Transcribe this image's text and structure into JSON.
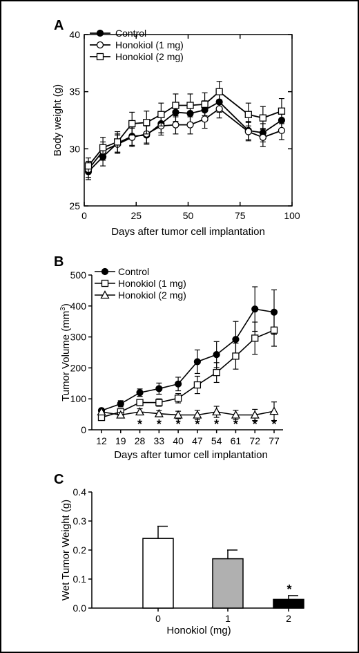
{
  "chart_data": [
    {
      "type": "line",
      "panel": "A",
      "xlabel": "Days after tumor cell implantation",
      "ylabel": "Body weight (g)",
      "xlim": [
        0,
        100
      ],
      "ylim": [
        25,
        40
      ],
      "xticks": [
        0,
        25,
        50,
        75,
        100
      ],
      "yticks": [
        25,
        30,
        35,
        40
      ],
      "legend_position": "top-left",
      "grid": false,
      "series": [
        {
          "name": "Control",
          "marker": "filled-circle",
          "x": [
            2,
            9,
            16,
            23,
            30,
            37,
            44,
            51,
            58,
            65,
            79,
            86,
            95
          ],
          "y": [
            28.0,
            29.3,
            30.5,
            31.1,
            31.2,
            32.2,
            33.2,
            33.1,
            33.4,
            34.1,
            31.6,
            31.4,
            32.5
          ],
          "err": [
            0.7,
            0.8,
            0.8,
            0.8,
            0.8,
            0.8,
            0.8,
            0.8,
            0.8,
            0.9,
            0.8,
            0.8,
            0.8
          ]
        },
        {
          "name": "Honokiol (1 mg)",
          "marker": "open-circle",
          "x": [
            2,
            9,
            16,
            23,
            30,
            37,
            44,
            51,
            58,
            65,
            79,
            86,
            95
          ],
          "y": [
            28.2,
            29.8,
            30.4,
            31.0,
            31.3,
            32.0,
            32.1,
            32.1,
            32.6,
            33.5,
            31.5,
            31.0,
            31.6
          ],
          "err": [
            0.7,
            0.8,
            0.8,
            0.8,
            0.8,
            0.8,
            0.8,
            0.8,
            0.8,
            0.8,
            0.8,
            0.8,
            0.8
          ]
        },
        {
          "name": "Honokiol (2 mg)",
          "marker": "open-square",
          "x": [
            2,
            9,
            16,
            23,
            30,
            37,
            44,
            51,
            58,
            65,
            79,
            86,
            95
          ],
          "y": [
            28.5,
            30.1,
            30.6,
            32.2,
            32.3,
            33.0,
            33.8,
            33.8,
            33.9,
            35.0,
            33.0,
            32.7,
            33.3
          ],
          "err": [
            0.7,
            0.9,
            0.9,
            1.0,
            1.0,
            1.0,
            1.0,
            1.0,
            1.0,
            0.9,
            1.0,
            1.0,
            1.1
          ]
        }
      ]
    },
    {
      "type": "line",
      "panel": "B",
      "xlabel": "Days after tumor cell implantation",
      "ylabel": "Tumor Volume (mm",
      "ylabel_sup": "3",
      "ylabel_end": ")",
      "categories": [
        "12",
        "19",
        "28",
        "33",
        "40",
        "47",
        "54",
        "61",
        "72",
        "77"
      ],
      "ylim": [
        0,
        500
      ],
      "yticks": [
        0,
        100,
        200,
        300,
        400,
        500
      ],
      "legend_position": "top-left",
      "grid": false,
      "significance_marker": "*",
      "significant_indices": [
        2,
        3,
        4,
        5,
        6,
        7,
        8,
        9
      ],
      "series": [
        {
          "name": "Control",
          "marker": "filled-circle",
          "values": [
            62,
            84,
            120,
            133,
            148,
            220,
            243,
            292,
            390,
            380
          ],
          "err": [
            8,
            10,
            12,
            18,
            22,
            38,
            42,
            58,
            72,
            72
          ]
        },
        {
          "name": "Honokiol (1 mg)",
          "marker": "open-square",
          "values": [
            40,
            58,
            88,
            88,
            102,
            145,
            185,
            238,
            296,
            322
          ],
          "err": [
            5,
            8,
            10,
            12,
            15,
            28,
            32,
            42,
            52,
            52
          ]
        },
        {
          "name": "Honokiol (2 mg)",
          "marker": "open-triangle",
          "values": [
            58,
            48,
            58,
            52,
            48,
            48,
            58,
            48,
            48,
            60
          ],
          "err": [
            8,
            8,
            10,
            10,
            12,
            15,
            18,
            15,
            18,
            30
          ]
        }
      ]
    },
    {
      "type": "bar",
      "panel": "C",
      "xlabel": "Honokiol (mg)",
      "ylabel": "Wet Tumor Weight (g)",
      "categories": [
        "0",
        "1",
        "2"
      ],
      "values": [
        0.24,
        0.17,
        0.03
      ],
      "err": [
        0.042,
        0.03,
        0.013
      ],
      "colors": [
        "#ffffff",
        "#b0b0b0",
        "#000000"
      ],
      "ylim": [
        0,
        0.4
      ],
      "yticks": [
        "0.0",
        "0.1",
        "0.2",
        "0.3",
        "0.4"
      ],
      "significance_marker": "*",
      "significant_indices": [
        2
      ]
    }
  ]
}
